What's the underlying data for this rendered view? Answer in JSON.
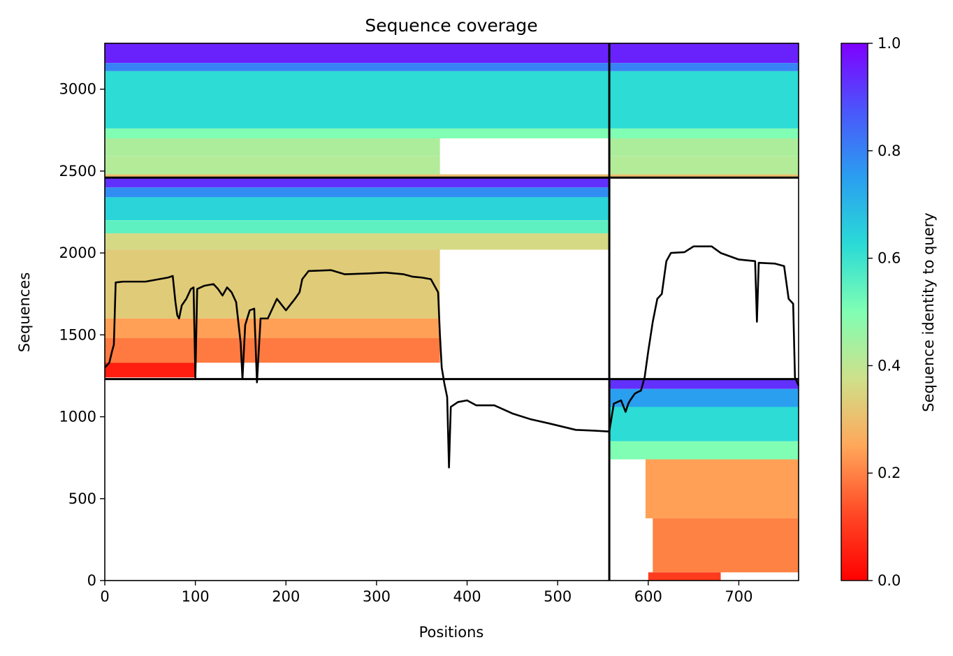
{
  "chart_data": {
    "type": "heatmap",
    "title": "Sequence coverage",
    "xlabel": "Positions",
    "ylabel": "Sequences",
    "colorbar_label": "Sequence identity to query",
    "colormap": "rainbow_r",
    "xlim": [
      0,
      766
    ],
    "ylim": [
      0,
      3280
    ],
    "x_ticks": [
      0,
      100,
      200,
      300,
      400,
      500,
      600,
      700
    ],
    "y_ticks": [
      0,
      500,
      1000,
      1500,
      2000,
      2500,
      3000
    ],
    "colorbar_ticks": [
      0.0,
      0.2,
      0.4,
      0.6,
      0.8,
      1.0
    ],
    "colorbar_tick_labels": [
      "0.0",
      "0.2",
      "0.4",
      "0.6",
      "0.8",
      "1.0"
    ],
    "colorbar_range": [
      0.0,
      1.0
    ],
    "chain_boundary_x": 557,
    "block_boundaries_y": [
      1230,
      2460
    ],
    "blocks": [
      {
        "name": "block-top",
        "y_range": [
          2460,
          3280
        ],
        "bands": [
          {
            "y": [
              3160,
              3280
            ],
            "x": [
              0,
              766
            ],
            "identity": 0.95
          },
          {
            "y": [
              3110,
              3160
            ],
            "x": [
              0,
              766
            ],
            "identity": 0.8
          },
          {
            "y": [
              2760,
              3110
            ],
            "x": [
              0,
              766
            ],
            "identity": 0.62
          },
          {
            "y": [
              2700,
              2760
            ],
            "x": [
              0,
              766
            ],
            "identity": 0.5
          },
          {
            "y": [
              2590,
              2700
            ],
            "x": [
              0,
              370
            ],
            "identity": 0.43
          },
          {
            "y": [
              2590,
              2700
            ],
            "x": [
              557,
              766
            ],
            "identity": 0.43
          },
          {
            "y": [
              2480,
              2590
            ],
            "x": [
              0,
              370
            ],
            "identity": 0.42
          },
          {
            "y": [
              2480,
              2590
            ],
            "x": [
              557,
              766
            ],
            "identity": 0.42
          },
          {
            "y": [
              2460,
              2480
            ],
            "x": [
              0,
              766
            ],
            "identity": 0.3
          }
        ]
      },
      {
        "name": "block-middle",
        "y_range": [
          1230,
          2460
        ],
        "bands": [
          {
            "y": [
              2400,
              2460
            ],
            "x": [
              0,
              557
            ],
            "identity": 0.93
          },
          {
            "y": [
              2340,
              2400
            ],
            "x": [
              0,
              557
            ],
            "identity": 0.78
          },
          {
            "y": [
              2200,
              2340
            ],
            "x": [
              0,
              557
            ],
            "identity": 0.64
          },
          {
            "y": [
              2120,
              2200
            ],
            "x": [
              0,
              557
            ],
            "identity": 0.55
          },
          {
            "y": [
              2020,
              2120
            ],
            "x": [
              0,
              557
            ],
            "identity": 0.36
          },
          {
            "y": [
              1600,
              2020
            ],
            "x": [
              0,
              370
            ],
            "identity": 0.33
          },
          {
            "y": [
              1480,
              1600
            ],
            "x": [
              0,
              370
            ],
            "identity": 0.24
          },
          {
            "y": [
              1330,
              1480
            ],
            "x": [
              0,
              370
            ],
            "identity": 0.19
          },
          {
            "y": [
              1240,
              1330
            ],
            "x": [
              0,
              100
            ],
            "identity": 0.05
          }
        ]
      },
      {
        "name": "block-bottom",
        "y_range": [
          0,
          1230
        ],
        "bands": [
          {
            "y": [
              1170,
              1230
            ],
            "x": [
              557,
              766
            ],
            "identity": 0.93
          },
          {
            "y": [
              1060,
              1170
            ],
            "x": [
              557,
              766
            ],
            "identity": 0.75
          },
          {
            "y": [
              850,
              1060
            ],
            "x": [
              557,
              766
            ],
            "identity": 0.62
          },
          {
            "y": [
              740,
              850
            ],
            "x": [
              557,
              766
            ],
            "identity": 0.5
          },
          {
            "y": [
              380,
              740
            ],
            "x": [
              597,
              766
            ],
            "identity": 0.24
          },
          {
            "y": [
              50,
              380
            ],
            "x": [
              605,
              766
            ],
            "identity": 0.2
          },
          {
            "y": [
              0,
              50
            ],
            "x": [
              600,
              680
            ],
            "identity": 0.1
          }
        ]
      }
    ],
    "coverage_line": [
      [
        0,
        1300
      ],
      [
        5,
        1330
      ],
      [
        8,
        1400
      ],
      [
        10,
        1440
      ],
      [
        12,
        1820
      ],
      [
        20,
        1825
      ],
      [
        45,
        1825
      ],
      [
        55,
        1835
      ],
      [
        70,
        1850
      ],
      [
        75,
        1860
      ],
      [
        78,
        1700
      ],
      [
        80,
        1620
      ],
      [
        82,
        1600
      ],
      [
        85,
        1680
      ],
      [
        90,
        1720
      ],
      [
        95,
        1780
      ],
      [
        98,
        1790
      ],
      [
        100,
        1240
      ],
      [
        102,
        1780
      ],
      [
        110,
        1800
      ],
      [
        120,
        1810
      ],
      [
        125,
        1780
      ],
      [
        130,
        1740
      ],
      [
        135,
        1790
      ],
      [
        140,
        1760
      ],
      [
        145,
        1700
      ],
      [
        150,
        1450
      ],
      [
        152,
        1230
      ],
      [
        155,
        1560
      ],
      [
        160,
        1650
      ],
      [
        165,
        1660
      ],
      [
        168,
        1210
      ],
      [
        172,
        1600
      ],
      [
        180,
        1600
      ],
      [
        190,
        1720
      ],
      [
        200,
        1650
      ],
      [
        210,
        1720
      ],
      [
        215,
        1760
      ],
      [
        218,
        1840
      ],
      [
        225,
        1890
      ],
      [
        250,
        1895
      ],
      [
        265,
        1870
      ],
      [
        290,
        1875
      ],
      [
        310,
        1880
      ],
      [
        330,
        1870
      ],
      [
        340,
        1855
      ],
      [
        350,
        1850
      ],
      [
        360,
        1840
      ],
      [
        368,
        1760
      ],
      [
        370,
        1500
      ],
      [
        372,
        1300
      ],
      [
        375,
        1200
      ],
      [
        378,
        1120
      ],
      [
        380,
        690
      ],
      [
        382,
        1060
      ],
      [
        390,
        1090
      ],
      [
        400,
        1100
      ],
      [
        410,
        1070
      ],
      [
        430,
        1070
      ],
      [
        450,
        1020
      ],
      [
        470,
        985
      ],
      [
        490,
        960
      ],
      [
        520,
        920
      ],
      [
        540,
        915
      ],
      [
        557,
        910
      ],
      [
        562,
        1080
      ],
      [
        570,
        1100
      ],
      [
        575,
        1030
      ],
      [
        578,
        1080
      ],
      [
        580,
        1100
      ],
      [
        585,
        1140
      ],
      [
        588,
        1150
      ],
      [
        592,
        1160
      ],
      [
        596,
        1240
      ],
      [
        600,
        1400
      ],
      [
        605,
        1580
      ],
      [
        610,
        1720
      ],
      [
        615,
        1750
      ],
      [
        620,
        1950
      ],
      [
        625,
        2000
      ],
      [
        640,
        2005
      ],
      [
        650,
        2040
      ],
      [
        670,
        2040
      ],
      [
        680,
        2000
      ],
      [
        700,
        1960
      ],
      [
        718,
        1950
      ],
      [
        720,
        1580
      ],
      [
        722,
        1940
      ],
      [
        740,
        1935
      ],
      [
        750,
        1920
      ],
      [
        755,
        1720
      ],
      [
        760,
        1690
      ],
      [
        762,
        1240
      ],
      [
        766,
        1190
      ]
    ]
  }
}
